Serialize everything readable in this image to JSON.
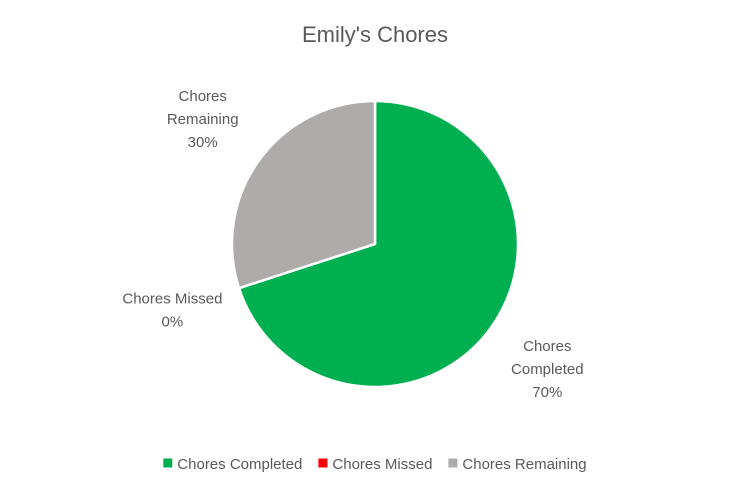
{
  "chart_data": {
    "type": "pie",
    "title": "Emily's Chores",
    "categories": [
      "Chores Completed",
      "Chores Missed",
      "Chores Remaining"
    ],
    "values": [
      70,
      0,
      30
    ],
    "colors": [
      "#00B050",
      "#FF0000",
      "#AFABAB"
    ],
    "data_labels": [
      [
        "Chores",
        "Completed",
        "70%"
      ],
      [
        "Chores Missed",
        "0%"
      ],
      [
        "Chores",
        "Remaining",
        "30%"
      ]
    ],
    "legend_position": "bottom"
  }
}
